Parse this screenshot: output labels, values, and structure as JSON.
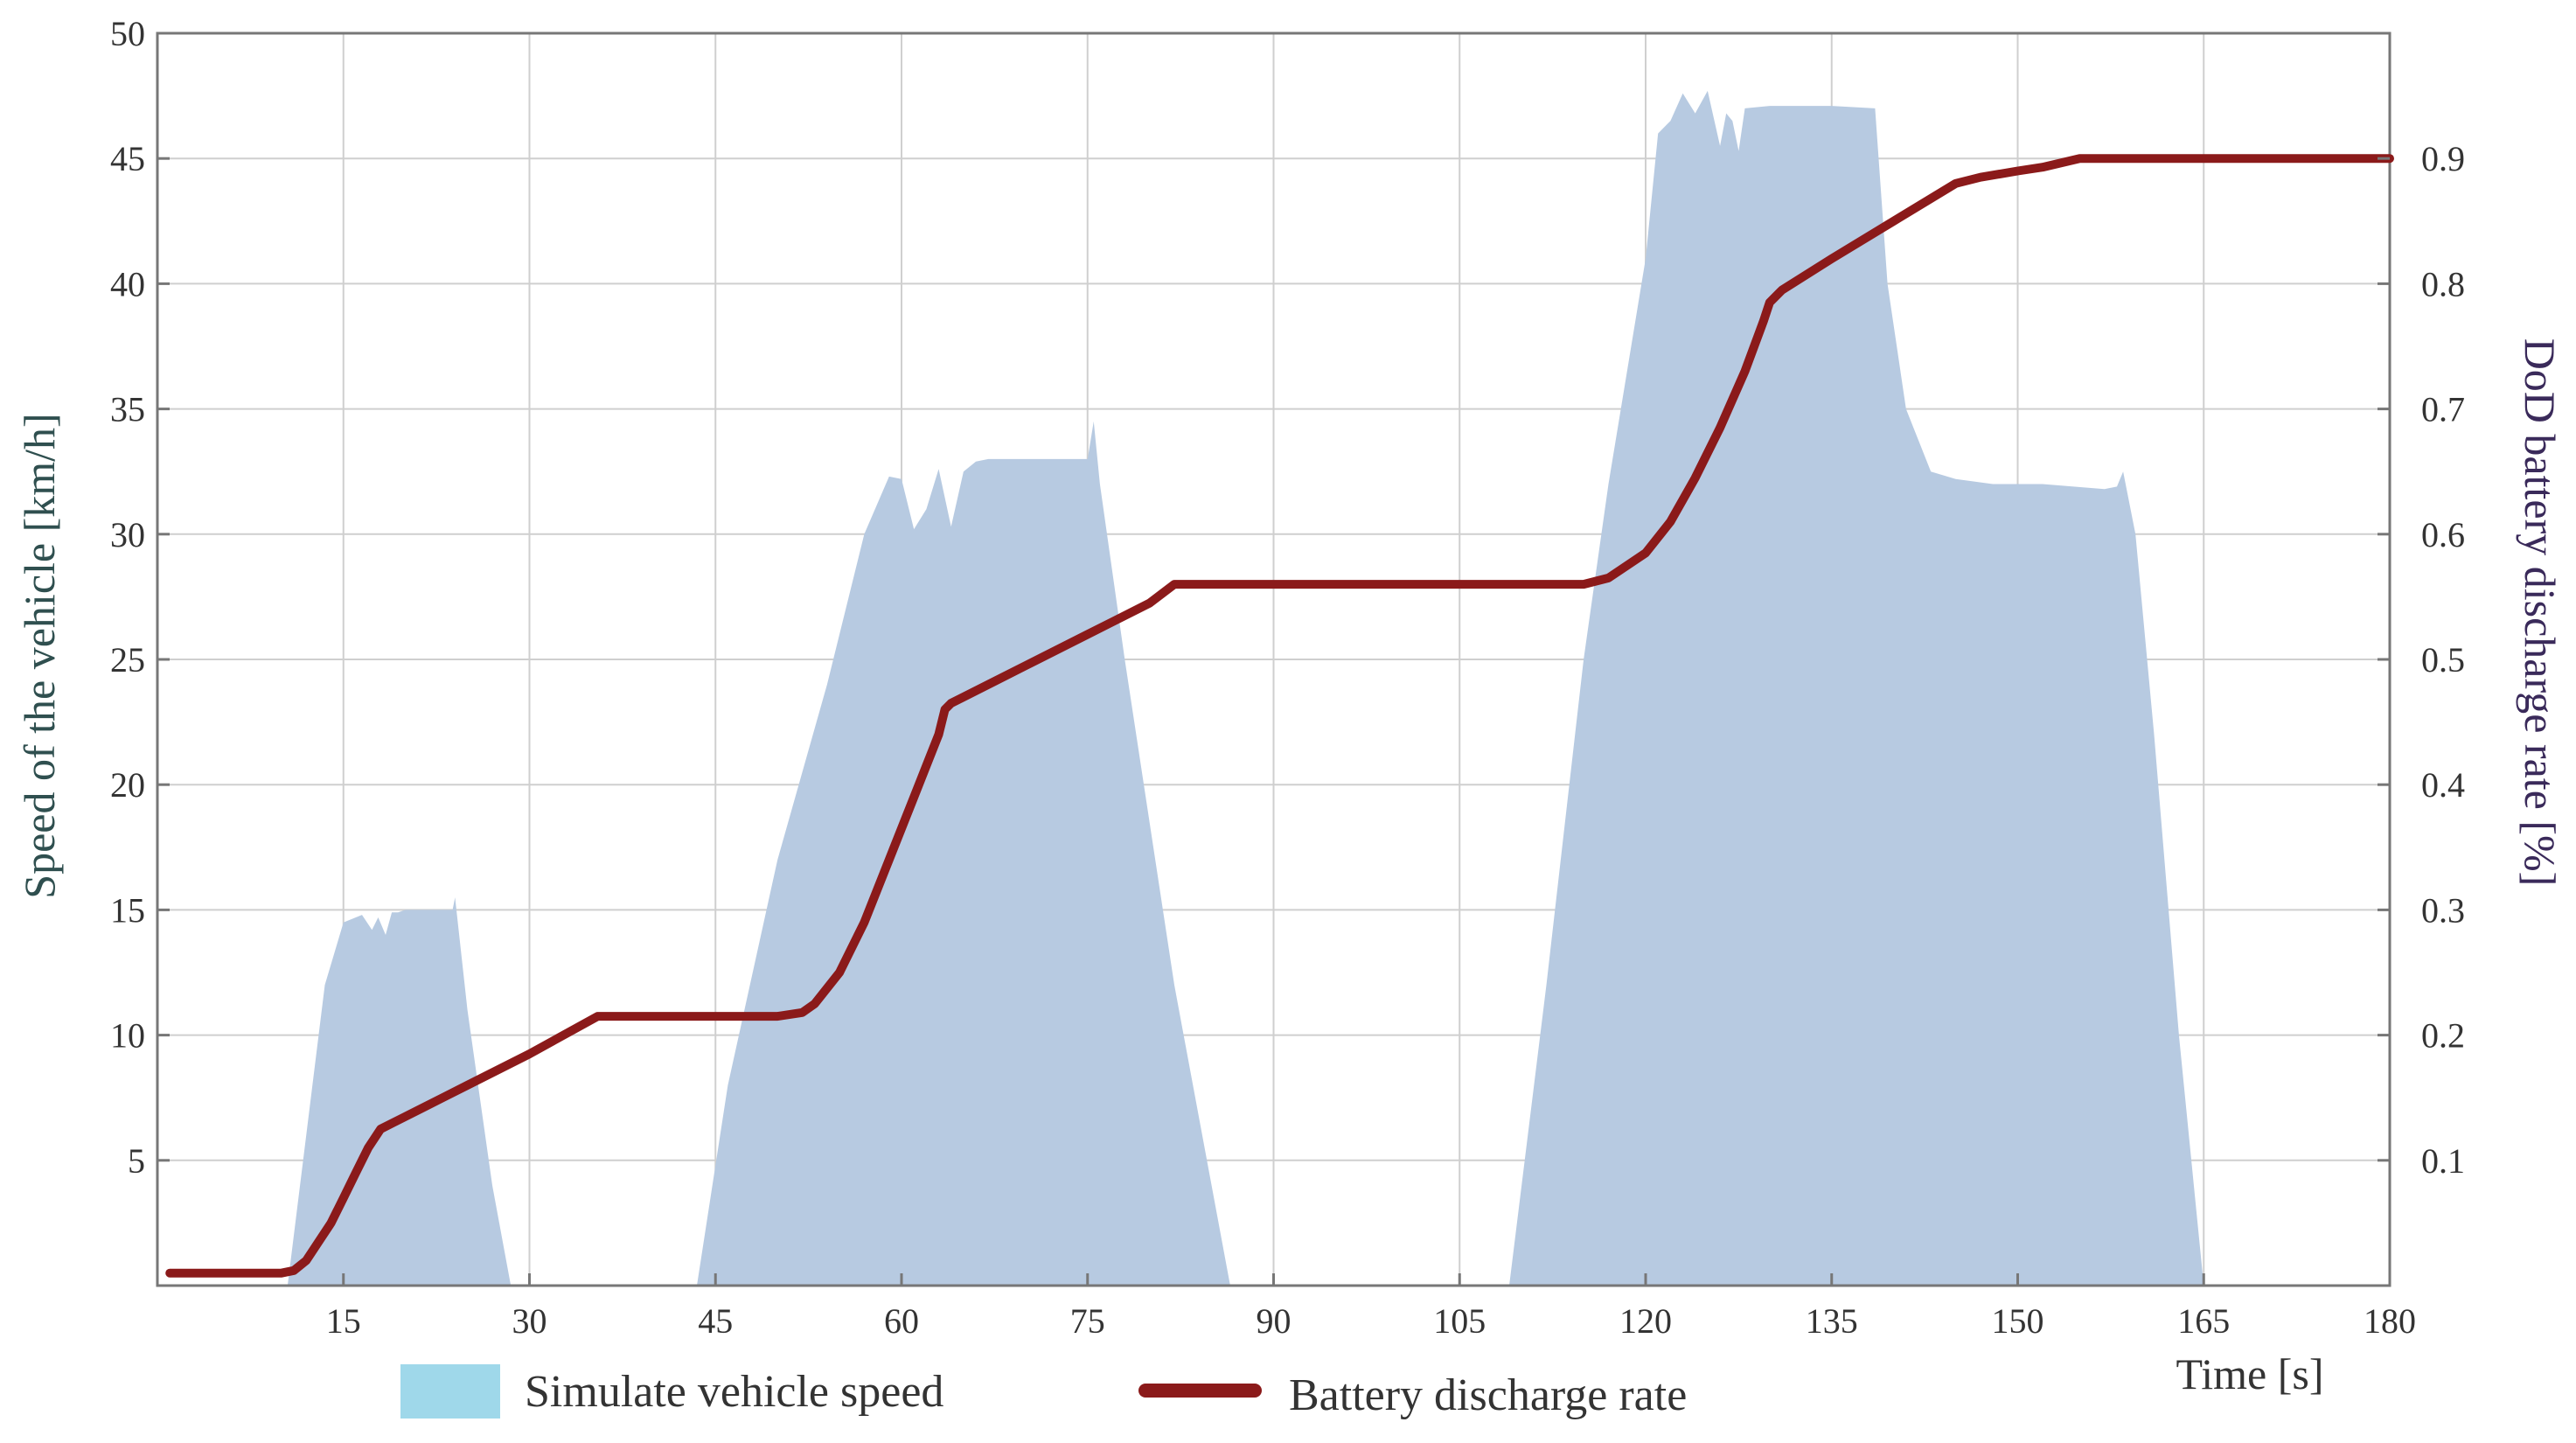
{
  "colors": {
    "speed_fill": "#b7cae1",
    "discharge_line": "#8b1a1a",
    "grid": "#cfcfcf",
    "axis": "#777777",
    "legend_swatch": "#9fd8ea",
    "left_title": "#2f4f4f",
    "right_title": "#3a2a5a"
  },
  "chart_data": {
    "type": "area",
    "xlabel": "Time [s]",
    "ylabel": "Speed of the vehicle  [km/h]",
    "y2label": "DoD battery discharge rate [%]",
    "xlim": [
      0,
      180
    ],
    "ylim": [
      0,
      50
    ],
    "y2lim": [
      0,
      1.0
    ],
    "x_ticks": [
      "15",
      "30",
      "45",
      "60",
      "75",
      "90",
      "105",
      "120",
      "135",
      "150",
      "165",
      "180"
    ],
    "y_ticks": [
      "5",
      "10",
      "15",
      "20",
      "25",
      "30",
      "35",
      "40",
      "45",
      "50"
    ],
    "y2_ticks": [
      "0.1",
      "0.2",
      "0.3",
      "0.4",
      "0.5",
      "0.6",
      "0.7",
      "0.8",
      "0.9"
    ],
    "grid": true,
    "legend_position": "bottom",
    "series": [
      {
        "name": "Simulate vehicle speed",
        "type": "area",
        "axis": "left",
        "x": [
          10.5,
          12,
          13.5,
          15,
          16.5,
          17.3,
          17.8,
          18.4,
          18.9,
          19.4,
          20,
          22,
          23.8,
          24,
          25,
          27,
          28.5,
          43.5,
          46,
          50,
          54,
          57,
          59,
          60,
          61,
          62,
          63,
          64,
          65,
          66,
          67,
          70,
          73,
          75,
          75.5,
          76,
          78,
          82,
          86.5,
          109,
          112,
          115,
          117,
          120,
          121,
          122,
          123,
          123.5,
          124,
          125,
          126,
          126.5,
          127,
          127.5,
          128,
          130,
          135,
          138.5,
          139.5,
          141,
          143,
          145,
          148,
          152,
          157,
          158,
          158.5,
          159.5,
          161,
          163,
          165
        ],
        "y": [
          0,
          6,
          12,
          14.5,
          14.8,
          14.2,
          14.7,
          14,
          14.9,
          14.9,
          15,
          15,
          15,
          15.5,
          11,
          4,
          0,
          0,
          8,
          17,
          24,
          30,
          32.3,
          32.2,
          30.2,
          31,
          32.6,
          30.3,
          32.5,
          32.9,
          33,
          33,
          33,
          33,
          34.5,
          32,
          25,
          12,
          0,
          0,
          12,
          25,
          32,
          41,
          46,
          46.5,
          47.6,
          47.2,
          46.8,
          47.7,
          45.5,
          46.8,
          46.5,
          45.3,
          47,
          47.1,
          47.1,
          47,
          40,
          35,
          32.5,
          32.2,
          32,
          32,
          31.8,
          31.9,
          32.5,
          30,
          22,
          10,
          0
        ]
      },
      {
        "name": "Battery discharge rate",
        "type": "line",
        "axis": "right",
        "x": [
          1,
          5,
          10,
          11,
          12,
          13,
          14,
          15,
          16,
          17,
          18,
          19,
          20,
          25,
          30,
          35.5,
          40,
          45,
          50,
          52,
          53,
          55,
          57,
          59,
          61,
          63,
          63.5,
          64,
          65,
          70,
          75,
          80,
          82,
          90,
          100,
          110,
          112,
          115,
          117,
          120,
          122,
          124,
          126,
          128,
          129.5,
          130,
          131,
          135,
          140,
          145,
          147,
          150,
          152,
          155,
          157,
          165,
          180
        ],
        "y": [
          0.01,
          0.01,
          0.01,
          0.012,
          0.02,
          0.035,
          0.05,
          0.07,
          0.09,
          0.11,
          0.125,
          0.13,
          0.135,
          0.16,
          0.185,
          0.215,
          0.215,
          0.215,
          0.215,
          0.218,
          0.225,
          0.25,
          0.29,
          0.34,
          0.39,
          0.44,
          0.46,
          0.465,
          0.47,
          0.495,
          0.52,
          0.545,
          0.56,
          0.56,
          0.56,
          0.56,
          0.56,
          0.56,
          0.565,
          0.585,
          0.61,
          0.645,
          0.685,
          0.73,
          0.77,
          0.785,
          0.795,
          0.82,
          0.85,
          0.88,
          0.885,
          0.89,
          0.893,
          0.9,
          0.9,
          0.9,
          0.9
        ]
      }
    ]
  },
  "legend": {
    "speed_label": "Simulate vehicle speed",
    "discharge_label": "Battery discharge rate"
  }
}
